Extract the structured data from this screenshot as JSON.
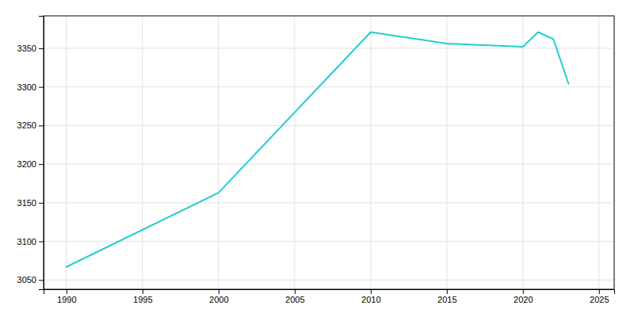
{
  "chart_data": {
    "type": "line",
    "x": [
      1990,
      2000,
      2010,
      2015,
      2020,
      2021,
      2022,
      2023
    ],
    "values": [
      3067,
      3163,
      3371,
      3356,
      3352,
      3371,
      3362,
      3304
    ],
    "color": "#22CDD0",
    "xlim": [
      1988.5,
      2026
    ],
    "ylim": [
      3038,
      3392
    ],
    "xticks": [
      1990,
      1995,
      2000,
      2005,
      2010,
      2015,
      2020,
      2025
    ],
    "yticks": [
      3050,
      3100,
      3150,
      3200,
      3250,
      3300,
      3350
    ],
    "grid": true
  }
}
